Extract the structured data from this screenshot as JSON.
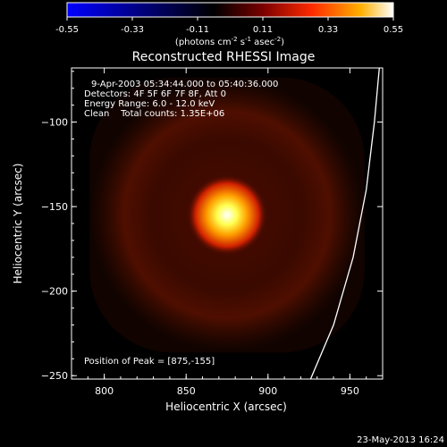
{
  "chart_data": {
    "type": "heatmap",
    "title": "Reconstructed RHESSI Image",
    "xlabel": "Heliocentric X (arcsec)",
    "ylabel": "Heliocentric Y (arcsec)",
    "xlim": [
      780,
      970
    ],
    "ylim": [
      -252,
      -68
    ],
    "x_ticks": [
      800,
      850,
      900,
      950
    ],
    "y_ticks": [
      -100,
      -150,
      -200,
      -250
    ],
    "colorbar": {
      "range": [
        -0.55,
        0.55
      ],
      "ticks": [
        "-0.55",
        "-0.33",
        "-0.11",
        "0.11",
        "0.33",
        "0.55"
      ],
      "label_parts": [
        "(photons cm",
        "-2",
        " s",
        "-1",
        " asec",
        "-2",
        ")"
      ],
      "colors": [
        "#0000ff",
        "#000000",
        "#7a0000",
        "#ff2a00",
        "#ffb000",
        "#ffffff"
      ]
    },
    "source": {
      "center": [
        875,
        -155
      ],
      "peak_value": 0.55,
      "core_radius": 11,
      "halo_radius": 60
    },
    "annotations": [
      "9-Apr-2003 05:34:44.000 to 05:40:36.000",
      "Detectors: 4F 5F 6F 7F 8F, Att 0",
      "Energy Range: 6.0 - 12.0 keV",
      "Clean    Total counts: 1.35E+06"
    ],
    "peak_label": "Position of Peak = [875,-155]",
    "limb_curve": [
      [
        926,
        -252
      ],
      [
        940,
        -220
      ],
      [
        952,
        -180
      ],
      [
        960,
        -140
      ],
      [
        965,
        -100
      ],
      [
        968,
        -68
      ]
    ]
  },
  "footer_date": "23-May-2013 16:24"
}
